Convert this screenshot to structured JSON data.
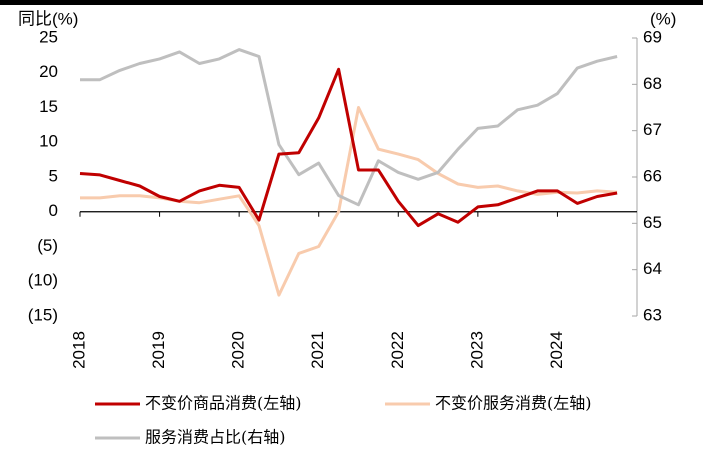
{
  "chart_data": {
    "type": "line",
    "y_label": "同比(%)",
    "y2_label": "(%)",
    "x": [
      2018,
      2018.25,
      2018.5,
      2018.75,
      2019,
      2019.25,
      2019.5,
      2019.75,
      2020,
      2020.25,
      2020.5,
      2020.75,
      2021,
      2021.25,
      2021.5,
      2021.75,
      2022,
      2022.25,
      2022.5,
      2022.75,
      2023,
      2023.25,
      2023.5,
      2023.75,
      2024,
      2024.25,
      2024.5,
      2024.75
    ],
    "xlim": [
      2018,
      2025
    ],
    "xticks": [
      2018,
      2019,
      2020,
      2021,
      2022,
      2023,
      2024
    ],
    "ylim": [
      -15,
      25
    ],
    "yticks": [
      {
        "value": -15,
        "label": "(15)"
      },
      {
        "value": -10,
        "label": "(10)"
      },
      {
        "value": -5,
        "label": "(5)"
      },
      0,
      5,
      10,
      15,
      20,
      25
    ],
    "negative_tick_color": "#e00000",
    "y2lim": [
      63,
      69
    ],
    "y2ticks": [
      63,
      64,
      65,
      66,
      67,
      68,
      69
    ],
    "series": [
      {
        "name": "不变价商品消费(左轴)",
        "color": "#c00000",
        "values": [
          5.5,
          5.3,
          4.5,
          3.7,
          2.2,
          1.5,
          3.0,
          3.8,
          3.5,
          -1.2,
          8.3,
          8.5,
          13.5,
          20.5,
          6.0,
          6.0,
          1.5,
          -2.0,
          -0.3,
          -1.5,
          0.7,
          1.0,
          2.0,
          3.0,
          3.0,
          1.2,
          2.2,
          2.7
        ]
      },
      {
        "name": "不变价服务消费(左轴)",
        "color": "#f8cbad",
        "values": [
          2.0,
          2.0,
          2.3,
          2.3,
          2.0,
          1.5,
          1.3,
          1.8,
          2.3,
          -2.0,
          -12.0,
          -6.0,
          -5.0,
          0.0,
          15.0,
          9.0,
          8.3,
          7.5,
          5.5,
          4.0,
          3.5,
          3.7,
          3.0,
          2.5,
          2.8,
          2.7,
          3.0,
          2.8
        ]
      },
      {
        "name": "服务消费占比(右轴)",
        "color": "#bfbfbf",
        "axis": "y2",
        "values": [
          68.1,
          68.1,
          68.3,
          68.45,
          68.55,
          68.7,
          68.45,
          68.55,
          68.75,
          68.6,
          66.7,
          66.05,
          66.3,
          65.6,
          65.4,
          66.35,
          66.1,
          65.95,
          66.1,
          66.6,
          67.05,
          67.1,
          67.45,
          67.55,
          67.8,
          68.35,
          68.5,
          68.6
        ]
      }
    ]
  }
}
